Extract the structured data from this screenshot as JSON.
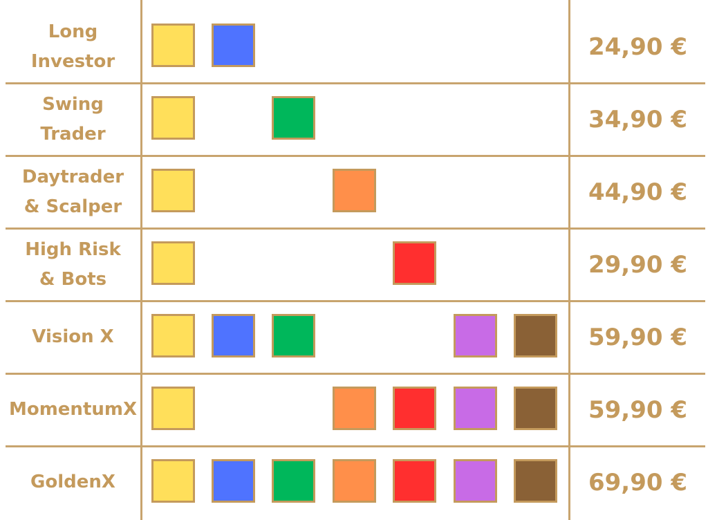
{
  "colors": {
    "border": "#c8a46e",
    "text": "#c49a5c",
    "yellow": "#ffdf5a",
    "blue": "#4f73ff",
    "green": "#00b75b",
    "orange": "#ff8f4a",
    "red": "#ff2f2f",
    "purple": "#c86be6",
    "brown": "#8a6136"
  },
  "rows": [
    {
      "label": "Long\nInvestor",
      "price": "24,90 €",
      "swatches": [
        "yellow",
        "blue",
        "",
        "",
        "",
        "",
        ""
      ]
    },
    {
      "label": "Swing\nTrader",
      "price": "34,90 €",
      "swatches": [
        "yellow",
        "",
        "green",
        "",
        "",
        "",
        ""
      ]
    },
    {
      "label": "Daytrader\n& Scalper",
      "price": "44,90 €",
      "swatches": [
        "yellow",
        "",
        "",
        "orange",
        "",
        "",
        ""
      ]
    },
    {
      "label": "High Risk\n& Bots",
      "price": "29,90 €",
      "swatches": [
        "yellow",
        "",
        "",
        "",
        "red",
        "",
        ""
      ]
    },
    {
      "label": "Vision X",
      "price": "59,90 €",
      "swatches": [
        "yellow",
        "blue",
        "green",
        "",
        "",
        "purple",
        "brown"
      ]
    },
    {
      "label": "MomentumX",
      "price": "59,90 €",
      "swatches": [
        "yellow",
        "",
        "",
        "orange",
        "red",
        "purple",
        "brown"
      ]
    },
    {
      "label": "GoldenX",
      "price": "69,90 €",
      "swatches": [
        "yellow",
        "blue",
        "green",
        "orange",
        "red",
        "purple",
        "brown"
      ]
    }
  ]
}
